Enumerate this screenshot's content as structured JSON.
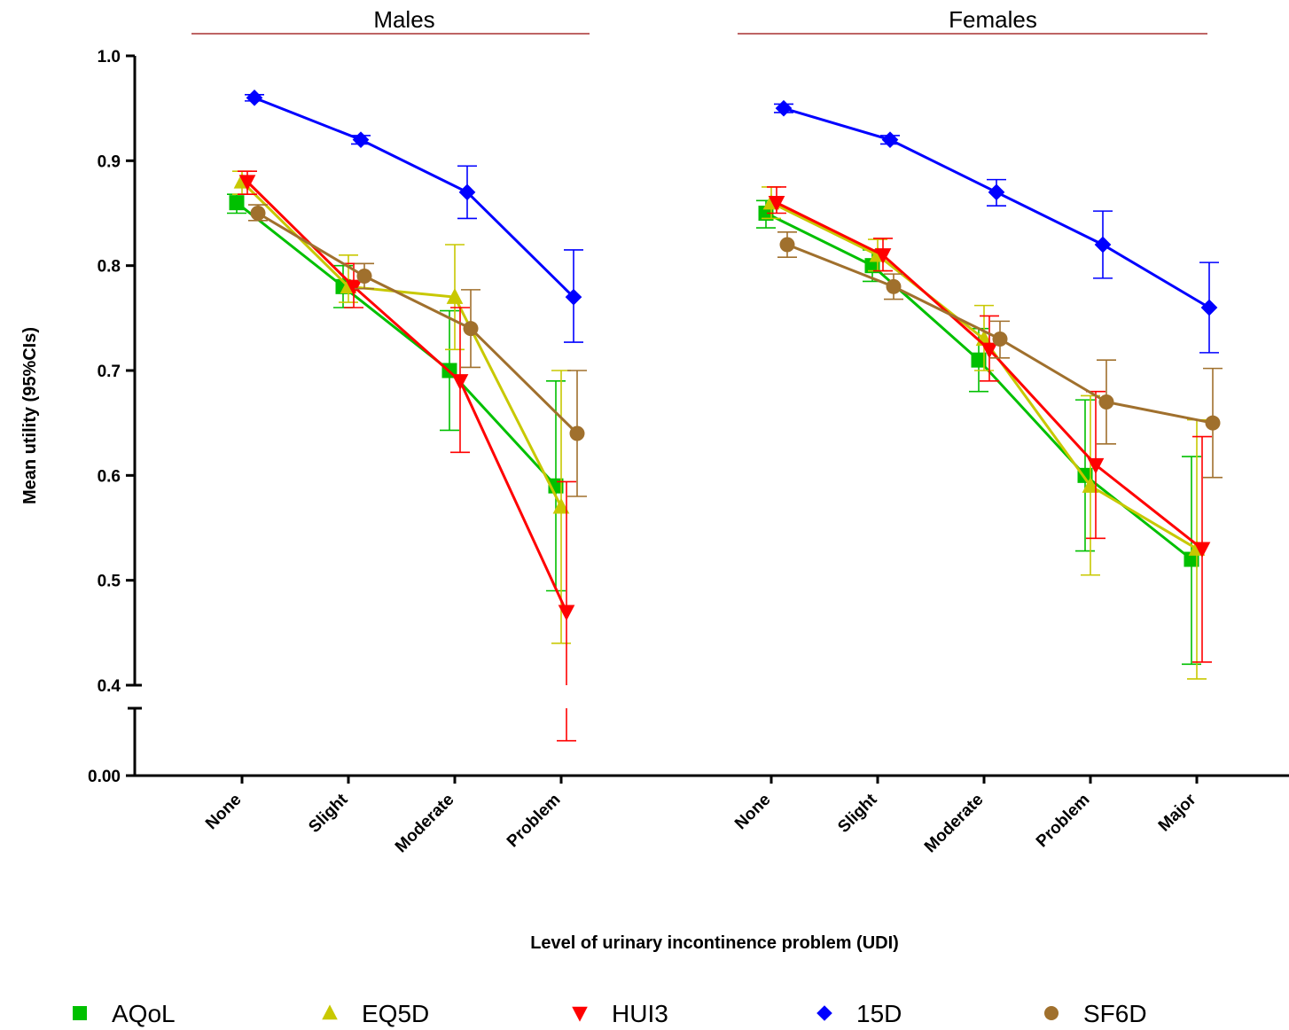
{
  "chart_data": {
    "type": "line",
    "ylabel": "Mean utility (95%CIs)",
    "xlabel": "Level of urinary incontinence problem (UDI)",
    "y_axis": {
      "broken": true,
      "break_between": [
        0.0,
        0.4
      ],
      "upper_range": [
        0.4,
        1.0
      ],
      "ticks_upper": [
        "0.4",
        "0.5",
        "0.6",
        "0.7",
        "0.8",
        "0.9",
        "1.0"
      ],
      "tick_lower": "0.00"
    },
    "grid": false,
    "legend_position": "bottom",
    "series_meta": [
      {
        "name": "AQoL",
        "color": "#00c000",
        "marker": "square"
      },
      {
        "name": "EQ5D",
        "color": "#c8c800",
        "marker": "triangle-up"
      },
      {
        "name": "HUI3",
        "color": "#ff0000",
        "marker": "triangle-down"
      },
      {
        "name": "15D",
        "color": "#0000ff",
        "marker": "diamond"
      },
      {
        "name": "SF6D",
        "color": "#a0702d",
        "marker": "circle"
      }
    ],
    "panels": [
      {
        "title": "Males",
        "categories": [
          "None",
          "Slight",
          "Moderate",
          "Problem"
        ],
        "series": [
          {
            "name": "AQoL",
            "values": [
              0.86,
              0.78,
              0.7,
              0.59
            ],
            "ci_low": [
              0.85,
              0.76,
              0.643,
              0.49
            ],
            "ci_high": [
              0.868,
              0.8,
              0.757,
              0.69
            ]
          },
          {
            "name": "EQ5D",
            "values": [
              0.88,
              0.78,
              0.77,
              0.57
            ],
            "ci_low": [
              0.868,
              0.765,
              0.72,
              0.44
            ],
            "ci_high": [
              0.89,
              0.81,
              0.82,
              0.7
            ]
          },
          {
            "name": "HUI3",
            "values": [
              0.88,
              0.78,
              0.69,
              0.47
            ],
            "ci_low": [
              0.868,
              0.76,
              0.622,
              0.033
            ],
            "ci_high": [
              0.89,
              0.802,
              0.76,
              0.594
            ]
          },
          {
            "name": "15D",
            "values": [
              0.96,
              0.92,
              0.87,
              0.77
            ],
            "ci_low": [
              0.957,
              0.916,
              0.845,
              0.727
            ],
            "ci_high": [
              0.963,
              0.924,
              0.895,
              0.815
            ]
          },
          {
            "name": "SF6D",
            "values": [
              0.85,
              0.79,
              0.74,
              0.64
            ],
            "ci_low": [
              0.843,
              0.778,
              0.703,
              0.58
            ],
            "ci_high": [
              0.858,
              0.802,
              0.777,
              0.7
            ]
          }
        ]
      },
      {
        "title": "Females",
        "categories": [
          "None",
          "Slight",
          "Moderate",
          "Problem",
          "Major"
        ],
        "series": [
          {
            "name": "AQoL",
            "values": [
              0.85,
              0.8,
              0.71,
              0.6,
              0.52
            ],
            "ci_low": [
              0.836,
              0.785,
              0.68,
              0.528,
              0.42
            ],
            "ci_high": [
              0.862,
              0.815,
              0.74,
              0.672,
              0.618
            ]
          },
          {
            "name": "EQ5D",
            "values": [
              0.86,
              0.81,
              0.73,
              0.59,
              0.53
            ],
            "ci_low": [
              0.845,
              0.795,
              0.7,
              0.505,
              0.406
            ],
            "ci_high": [
              0.875,
              0.825,
              0.762,
              0.676,
              0.653
            ]
          },
          {
            "name": "HUI3",
            "values": [
              0.86,
              0.81,
              0.72,
              0.61,
              0.53
            ],
            "ci_low": [
              0.85,
              0.795,
              0.69,
              0.54,
              0.422
            ],
            "ci_high": [
              0.875,
              0.826,
              0.752,
              0.68,
              0.637
            ]
          },
          {
            "name": "15D",
            "values": [
              0.95,
              0.92,
              0.87,
              0.82,
              0.76
            ],
            "ci_low": [
              0.946,
              0.916,
              0.857,
              0.788,
              0.717
            ],
            "ci_high": [
              0.954,
              0.924,
              0.882,
              0.852,
              0.803
            ]
          },
          {
            "name": "SF6D",
            "values": [
              0.82,
              0.78,
              0.73,
              0.67,
              0.65
            ],
            "ci_low": [
              0.808,
              0.768,
              0.712,
              0.63,
              0.598
            ],
            "ci_high": [
              0.832,
              0.792,
              0.747,
              0.71,
              0.702
            ]
          }
        ]
      }
    ]
  }
}
